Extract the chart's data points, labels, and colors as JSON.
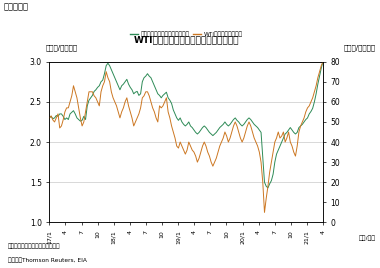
{
  "title": "WTI原油先物価格と米ガソリン小売価格",
  "ylabel_left": "（ドル/ガロン）",
  "ylabel_right": "（ドル/バレル）",
  "xlabel": "（年/月）",
  "note": "（注）各月曜日時点の週次ベース",
  "source": "（資料）Thomson Reuters, EIA",
  "fig_label": "（図表９）",
  "ylim_left": [
    1.0,
    3.0
  ],
  "ylim_right": [
    0,
    80
  ],
  "yticks_left": [
    1.0,
    1.5,
    2.0,
    2.5,
    3.0
  ],
  "yticks_right": [
    0,
    10,
    20,
    30,
    40,
    50,
    60,
    70,
    80
  ],
  "xtick_labels": [
    "17/1",
    "4",
    "7",
    "10",
    "18/1",
    "4",
    "7",
    "10",
    "19/1",
    "4",
    "7",
    "10",
    "20/1",
    "4",
    "7",
    "10",
    "21/1",
    "4"
  ],
  "gasoline_color": "#2e8b57",
  "wti_color": "#cc7722",
  "legend_gasoline": "米レギュラーガソリン小売価格",
  "legend_wti": "WTI先物価格（右軸）",
  "background_color": "#ffffff",
  "gasoline_data": [
    2.3,
    2.32,
    2.29,
    2.3,
    2.33,
    2.32,
    2.35,
    2.35,
    2.32,
    2.28,
    2.3,
    2.28,
    2.35,
    2.37,
    2.39,
    2.35,
    2.3,
    2.28,
    2.26,
    2.27,
    2.32,
    2.28,
    2.45,
    2.52,
    2.55,
    2.58,
    2.63,
    2.65,
    2.68,
    2.7,
    2.75,
    2.77,
    2.85,
    2.95,
    2.98,
    2.95,
    2.9,
    2.85,
    2.8,
    2.75,
    2.7,
    2.65,
    2.7,
    2.72,
    2.75,
    2.78,
    2.72,
    2.68,
    2.65,
    2.6,
    2.62,
    2.63,
    2.58,
    2.6,
    2.75,
    2.8,
    2.82,
    2.85,
    2.82,
    2.8,
    2.75,
    2.7,
    2.65,
    2.6,
    2.58,
    2.55,
    2.58,
    2.6,
    2.62,
    2.55,
    2.52,
    2.48,
    2.4,
    2.35,
    2.3,
    2.27,
    2.3,
    2.25,
    2.22,
    2.2,
    2.22,
    2.25,
    2.2,
    2.18,
    2.15,
    2.12,
    2.1,
    2.12,
    2.15,
    2.18,
    2.2,
    2.18,
    2.15,
    2.12,
    2.1,
    2.08,
    2.1,
    2.12,
    2.15,
    2.18,
    2.2,
    2.22,
    2.25,
    2.22,
    2.2,
    2.22,
    2.25,
    2.28,
    2.3,
    2.27,
    2.25,
    2.22,
    2.2,
    2.22,
    2.25,
    2.28,
    2.3,
    2.28,
    2.25,
    2.22,
    2.2,
    2.18,
    2.15,
    2.12,
    1.8,
    1.5,
    1.45,
    1.43,
    1.48,
    1.52,
    1.6,
    1.75,
    1.85,
    1.9,
    1.95,
    2.0,
    2.05,
    2.1,
    2.12,
    2.15,
    2.18,
    2.15,
    2.12,
    2.1,
    2.12,
    2.18,
    2.2,
    2.22,
    2.25,
    2.28,
    2.3,
    2.35,
    2.38,
    2.42,
    2.5,
    2.6,
    2.72,
    2.82,
    2.92,
    3.0
  ],
  "wti_data": [
    52,
    53,
    51,
    50,
    52,
    54,
    47,
    48,
    51,
    55,
    57,
    57,
    60,
    63,
    68,
    65,
    62,
    57,
    52,
    48,
    50,
    55,
    60,
    65,
    65,
    65,
    63,
    62,
    60,
    58,
    65,
    68,
    70,
    75,
    72,
    70,
    65,
    62,
    60,
    58,
    55,
    52,
    55,
    57,
    60,
    62,
    58,
    55,
    52,
    48,
    50,
    52,
    54,
    57,
    62,
    63,
    65,
    65,
    63,
    60,
    57,
    55,
    52,
    50,
    58,
    57,
    58,
    60,
    62,
    55,
    52,
    48,
    45,
    42,
    38,
    37,
    40,
    38,
    36,
    34,
    36,
    40,
    38,
    36,
    35,
    33,
    30,
    32,
    35,
    38,
    40,
    38,
    35,
    33,
    30,
    28,
    30,
    32,
    35,
    38,
    40,
    42,
    45,
    43,
    40,
    42,
    45,
    48,
    50,
    48,
    45,
    42,
    40,
    42,
    45,
    48,
    50,
    48,
    45,
    42,
    40,
    38,
    35,
    30,
    20,
    5,
    12,
    18,
    25,
    30,
    35,
    40,
    42,
    45,
    42,
    43,
    45,
    40,
    42,
    45,
    40,
    38,
    35,
    33,
    38,
    45,
    48,
    50,
    52,
    55,
    57,
    58,
    60,
    62,
    65,
    68,
    72,
    75,
    78,
    80
  ]
}
